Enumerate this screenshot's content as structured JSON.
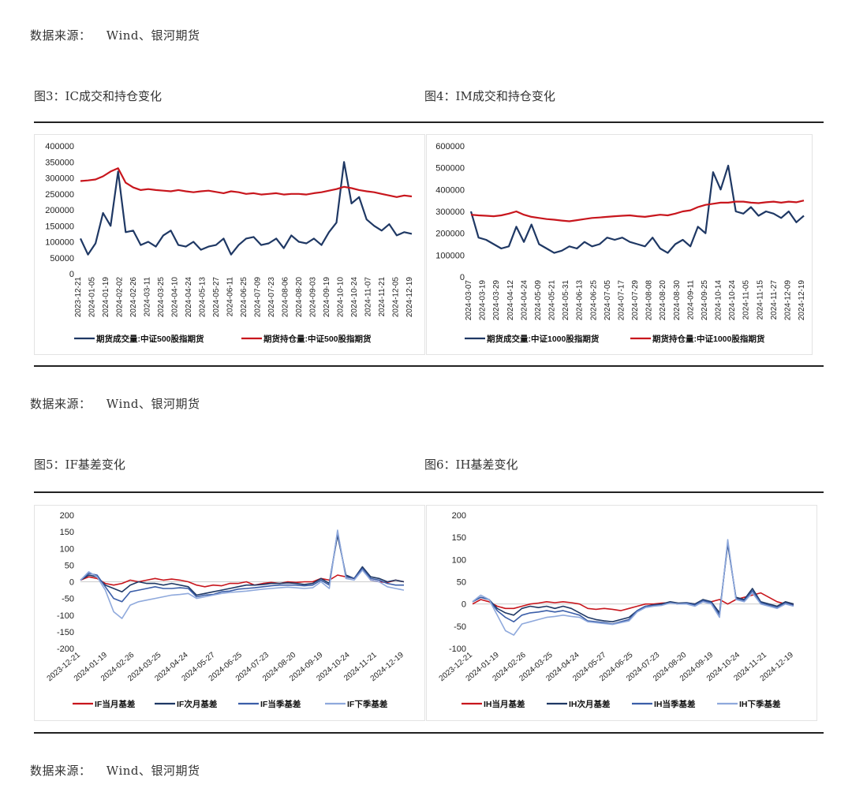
{
  "source_label": "数据来源：",
  "source_text": "Wind、银河期货",
  "figures": {
    "fig3": {
      "title": "图3：IC成交和持仓变化"
    },
    "fig4": {
      "title": "图4：IM成交和持仓变化"
    },
    "fig5": {
      "title": "图5：IF基差变化"
    },
    "fig6": {
      "title": "图6：IH基差变化"
    }
  },
  "colors": {
    "red": "#c8161d",
    "navy": "#1f3864",
    "mid_blue": "#3b5ea8",
    "light_blue": "#8fa9dc"
  },
  "chart_data": [
    {
      "id": "fig3",
      "type": "line",
      "title": "",
      "ylim": [
        0,
        400000
      ],
      "yticks": [
        0,
        50000,
        100000,
        150000,
        200000,
        250000,
        300000,
        350000,
        400000
      ],
      "x_tick_labels": [
        "2023-12-21",
        "2024-01-05",
        "2024-01-19",
        "2024-02-02",
        "2024-02-26",
        "2024-03-11",
        "2024-03-25",
        "2024-04-10",
        "2024-04-24",
        "2024-05-13",
        "2024-05-27",
        "2024-06-11",
        "2024-06-25",
        "2024-07-09",
        "2024-07-23",
        "2024-08-06",
        "2024-08-20",
        "2024-09-03",
        "2024-09-19",
        "2024-10-10",
        "2024-10-24",
        "2024-11-07",
        "2024-11-21",
        "2024-12-05",
        "2024-12-19"
      ],
      "legend_position": "bottom",
      "series": [
        {
          "name": "期货成交量:中证500股指期货",
          "color": "#1f3864",
          "values": [
            110000,
            60000,
            95000,
            190000,
            150000,
            320000,
            130000,
            135000,
            90000,
            100000,
            85000,
            120000,
            135000,
            90000,
            85000,
            100000,
            75000,
            85000,
            90000,
            110000,
            60000,
            90000,
            110000,
            115000,
            90000,
            95000,
            110000,
            80000,
            120000,
            100000,
            95000,
            110000,
            90000,
            130000,
            160000,
            350000,
            220000,
            240000,
            170000,
            150000,
            135000,
            155000,
            120000,
            130000,
            125000
          ]
        },
        {
          "name": "期货持仓量:中证500股指期货",
          "color": "#c8161d",
          "values": [
            290000,
            292000,
            295000,
            305000,
            320000,
            330000,
            285000,
            270000,
            262000,
            265000,
            262000,
            260000,
            258000,
            262000,
            258000,
            255000,
            258000,
            260000,
            256000,
            252000,
            258000,
            255000,
            250000,
            252000,
            248000,
            250000,
            252000,
            248000,
            250000,
            250000,
            248000,
            252000,
            255000,
            260000,
            265000,
            272000,
            268000,
            262000,
            258000,
            255000,
            250000,
            245000,
            240000,
            245000,
            242000
          ]
        }
      ]
    },
    {
      "id": "fig4",
      "type": "line",
      "title": "",
      "ylim": [
        0,
        600000
      ],
      "yticks": [
        0,
        100000,
        200000,
        300000,
        400000,
        500000,
        600000
      ],
      "x_tick_labels": [
        "2024-03-07",
        "2024-03-19",
        "2024-03-29",
        "2024-04-12",
        "2024-04-24",
        "2024-05-09",
        "2024-05-21",
        "2024-05-31",
        "2024-06-13",
        "2024-06-25",
        "2024-07-05",
        "2024-07-17",
        "2024-07-29",
        "2024-08-08",
        "2024-08-20",
        "2024-08-30",
        "2024-09-11",
        "2024-09-25",
        "2024-10-14",
        "2024-10-24",
        "2024-11-05",
        "2024-11-15",
        "2024-11-27",
        "2024-12-09",
        "2024-12-19"
      ],
      "legend_position": "bottom",
      "series": [
        {
          "name": "期货成交量:中证1000股指期货",
          "color": "#1f3864",
          "values": [
            300000,
            180000,
            170000,
            150000,
            130000,
            140000,
            230000,
            160000,
            240000,
            150000,
            130000,
            110000,
            120000,
            140000,
            130000,
            160000,
            140000,
            150000,
            180000,
            170000,
            180000,
            160000,
            150000,
            140000,
            180000,
            130000,
            110000,
            150000,
            170000,
            140000,
            230000,
            200000,
            480000,
            400000,
            510000,
            300000,
            290000,
            320000,
            280000,
            300000,
            290000,
            270000,
            300000,
            250000,
            280000
          ]
        },
        {
          "name": "期货持仓量:中证1000股指期货",
          "color": "#c8161d",
          "values": [
            285000,
            282000,
            280000,
            278000,
            282000,
            290000,
            300000,
            285000,
            275000,
            270000,
            265000,
            262000,
            258000,
            255000,
            260000,
            265000,
            270000,
            272000,
            275000,
            278000,
            280000,
            282000,
            278000,
            275000,
            280000,
            285000,
            282000,
            290000,
            300000,
            305000,
            320000,
            330000,
            335000,
            340000,
            340000,
            345000,
            345000,
            340000,
            338000,
            342000,
            345000,
            340000,
            345000,
            342000,
            350000
          ]
        }
      ]
    },
    {
      "id": "fig5",
      "type": "line",
      "title": "",
      "ylim": [
        -200,
        200
      ],
      "yticks": [
        -200,
        -150,
        -100,
        -50,
        0,
        50,
        100,
        150,
        200
      ],
      "x_tick_labels": [
        "2023-12-21",
        "2024-01-19",
        "2024-02-26",
        "2024-03-25",
        "2024-04-24",
        "2024-05-27",
        "2024-06-25",
        "2024-07-23",
        "2024-08-20",
        "2024-09-19",
        "2024-10-24",
        "2024-11-21",
        "2024-12-19"
      ],
      "legend_position": "bottom",
      "series": [
        {
          "name": "IF当月基差",
          "color": "#c8161d",
          "values": [
            5,
            15,
            10,
            -5,
            -10,
            -5,
            5,
            0,
            5,
            10,
            5,
            8,
            5,
            0,
            -10,
            -15,
            -10,
            -12,
            -5,
            -5,
            0,
            -10,
            -5,
            -2,
            -5,
            0,
            -2,
            0,
            0,
            10,
            5,
            20,
            15,
            10,
            40,
            5,
            0,
            -2,
            5,
            0
          ]
        },
        {
          "name": "IF次月基差",
          "color": "#1f3864",
          "values": [
            5,
            20,
            15,
            -10,
            -20,
            -30,
            -10,
            0,
            -5,
            -5,
            -10,
            -5,
            -10,
            -15,
            -40,
            -35,
            -30,
            -25,
            -20,
            -15,
            -10,
            -10,
            -8,
            -5,
            -5,
            -3,
            -5,
            -8,
            -5,
            10,
            -5,
            140,
            20,
            10,
            45,
            15,
            10,
            0,
            5,
            0
          ]
        },
        {
          "name": "IF当季基差",
          "color": "#3b5ea8",
          "values": [
            5,
            25,
            20,
            -15,
            -50,
            -60,
            -30,
            -25,
            -20,
            -15,
            -20,
            -20,
            -18,
            -20,
            -45,
            -40,
            -38,
            -30,
            -28,
            -22,
            -20,
            -18,
            -15,
            -12,
            -10,
            -10,
            -10,
            -12,
            -10,
            5,
            -10,
            150,
            15,
            10,
            40,
            10,
            5,
            -5,
            -10,
            -10
          ]
        },
        {
          "name": "IF下季基差",
          "color": "#8fa9dc",
          "values": [
            5,
            30,
            15,
            -25,
            -90,
            -110,
            -70,
            -60,
            -55,
            -50,
            -45,
            -40,
            -38,
            -35,
            -50,
            -45,
            -40,
            -35,
            -32,
            -30,
            -28,
            -25,
            -22,
            -20,
            -18,
            -16,
            -18,
            -20,
            -18,
            0,
            -20,
            155,
            10,
            5,
            35,
            5,
            0,
            -15,
            -20,
            -25
          ]
        }
      ]
    },
    {
      "id": "fig6",
      "type": "line",
      "title": "",
      "ylim": [
        -100,
        200
      ],
      "yticks": [
        -100,
        -50,
        0,
        50,
        100,
        150,
        200
      ],
      "x_tick_labels": [
        "2023-12-21",
        "2024-01-19",
        "2024-02-26",
        "2024-03-25",
        "2024-04-24",
        "2024-05-27",
        "2024-06-25",
        "2024-07-23",
        "2024-08-20",
        "2024-09-19",
        "2024-10-24",
        "2024-11-21",
        "2024-12-19"
      ],
      "legend_position": "bottom",
      "series": [
        {
          "name": "IH当月基差",
          "color": "#c8161d",
          "values": [
            0,
            10,
            5,
            -5,
            -10,
            -10,
            -5,
            0,
            2,
            5,
            3,
            5,
            3,
            0,
            -10,
            -12,
            -10,
            -12,
            -15,
            -10,
            -5,
            0,
            0,
            2,
            3,
            0,
            2,
            0,
            5,
            5,
            10,
            0,
            10,
            15,
            20,
            25,
            15,
            5,
            0,
            0
          ]
        },
        {
          "name": "IH次月基差",
          "color": "#1f3864",
          "values": [
            5,
            15,
            10,
            -10,
            -20,
            -25,
            -10,
            -5,
            -8,
            -5,
            -10,
            -5,
            -10,
            -20,
            -30,
            -35,
            -38,
            -40,
            -35,
            -30,
            -15,
            -5,
            -2,
            0,
            5,
            2,
            3,
            0,
            10,
            5,
            -20,
            135,
            15,
            10,
            35,
            5,
            0,
            -5,
            5,
            0
          ]
        },
        {
          "name": "IH当季基差",
          "color": "#3b5ea8",
          "values": [
            5,
            15,
            10,
            -15,
            -30,
            -40,
            -25,
            -20,
            -18,
            -15,
            -18,
            -15,
            -20,
            -25,
            -38,
            -40,
            -42,
            -45,
            -40,
            -35,
            -15,
            -5,
            -3,
            -2,
            3,
            0,
            2,
            -2,
            8,
            3,
            -25,
            140,
            12,
            8,
            30,
            3,
            -3,
            -8,
            2,
            -3
          ]
        },
        {
          "name": "IH下季基差",
          "color": "#8fa9dc",
          "values": [
            5,
            20,
            10,
            -25,
            -60,
            -70,
            -45,
            -40,
            -35,
            -30,
            -28,
            -25,
            -28,
            -30,
            -40,
            -42,
            -44,
            -46,
            -42,
            -38,
            -18,
            -8,
            -5,
            -3,
            2,
            0,
            0,
            -5,
            5,
            0,
            -30,
            145,
            10,
            5,
            25,
            0,
            -5,
            -10,
            0,
            -5
          ]
        }
      ]
    }
  ]
}
